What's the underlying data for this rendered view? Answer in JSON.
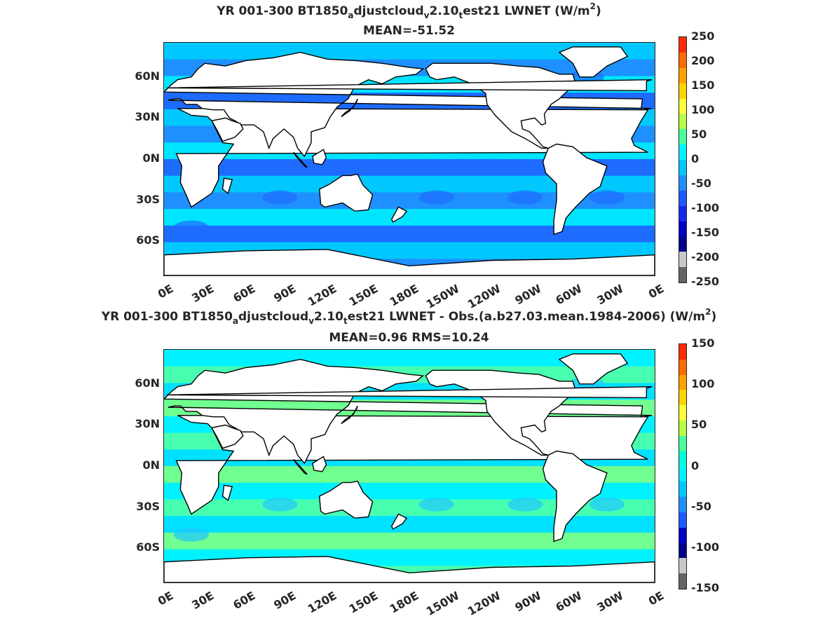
{
  "panels": [
    {
      "title_parts": [
        "YR 001-300 BT1850",
        "a",
        "djustcloud",
        "v",
        "2.10",
        "t",
        "est21  LWNET (W/m",
        "2",
        ")"
      ],
      "subtitle": "MEAN=-51.52",
      "colorbar_ticks": [
        "250",
        "200",
        "150",
        "100",
        "50",
        "0",
        "-50",
        "-100",
        "-150",
        "-200",
        "-250"
      ],
      "colorbar_colors": [
        "#ff2a00",
        "#ff6a00",
        "#ffa100",
        "#ffd500",
        "#ffff3a",
        "#b8ff48",
        "#48ff9e",
        "#00f2ff",
        "#00c8ff",
        "#1e90ff",
        "#1e5aff",
        "#1428f0",
        "#0000c8",
        "#00008c",
        "#c8c8c8",
        "#646464"
      ],
      "ocean_base": "#1e90ff",
      "ocean_bands": [
        "#00c8ff",
        "#1e90ff",
        "#00e5ff",
        "#1e6cff"
      ]
    },
    {
      "title_parts": [
        "YR 001-300 BT1850",
        "a",
        "djustcloud",
        "v",
        "2.10",
        "t",
        "est21 LWNET - Obs.(a.b27.03.mean.1984-2006) (W/m",
        "2",
        ")"
      ],
      "subtitle": "MEAN=0.96 RMS=10.24",
      "colorbar_ticks": [
        "150",
        "100",
        "50",
        "0",
        "-50",
        "-100",
        "-150"
      ],
      "colorbar_colors": [
        "#ff2a00",
        "#ff6a00",
        "#ffa100",
        "#ffd500",
        "#ffff3a",
        "#b8ff48",
        "#48ff9e",
        "#00ffdc",
        "#00f2ff",
        "#00c8ff",
        "#1e90ff",
        "#1e5aff",
        "#0000c8",
        "#00008c",
        "#c8c8c8",
        "#646464"
      ],
      "ocean_base": "#48ffc8",
      "ocean_bands": [
        "#00f2ff",
        "#48ffb0",
        "#00e0ff",
        "#70ff90"
      ]
    }
  ],
  "lat_labels": [
    "60N",
    "30N",
    "0N",
    "30S",
    "60S"
  ],
  "lon_labels": [
    "0E",
    "30E",
    "60E",
    "90E",
    "120E",
    "150E",
    "180E",
    "150W",
    "120W",
    "90W",
    "60W",
    "30W",
    "0E"
  ]
}
